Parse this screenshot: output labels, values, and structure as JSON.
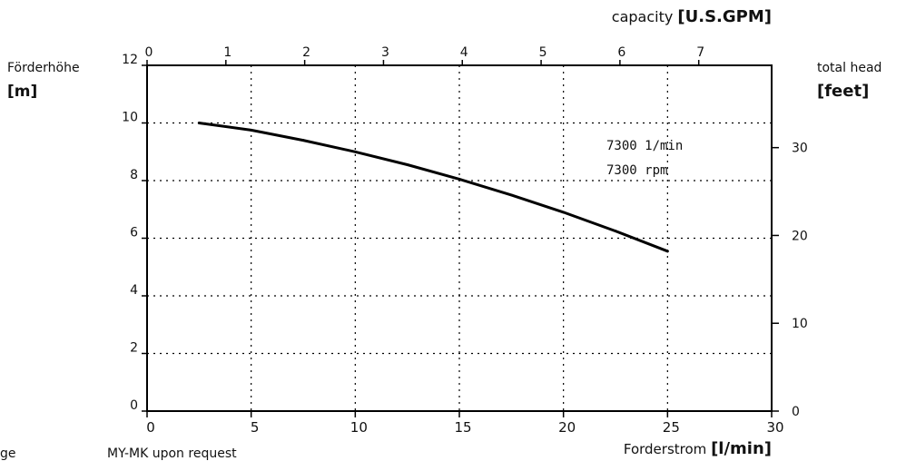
{
  "chart_data": {
    "type": "line",
    "x": [
      2.5,
      5,
      7.5,
      10,
      12.5,
      15,
      17.5,
      20,
      22.5,
      25
    ],
    "series": [
      {
        "values": [
          10.0,
          9.75,
          9.4,
          9.0,
          8.55,
          8.05,
          7.5,
          6.9,
          6.25,
          5.55
        ]
      }
    ],
    "xlabel": "Forderstrom",
    "xlabel_unit": "[l/min]",
    "xlim": [
      0,
      30
    ],
    "xticks": [
      "0",
      "5",
      "10",
      "15",
      "20",
      "25",
      "30"
    ],
    "ylabel": "Förderhöhe",
    "ylabel_unit": "[m]",
    "ylim": [
      0,
      12
    ],
    "yticks": [
      "0",
      "2",
      "4",
      "6",
      "8",
      "10",
      "12"
    ],
    "x2label": "capacity",
    "x2label_unit": "[U.S.GPM]",
    "x2lim": [
      0,
      7.925
    ],
    "x2ticks": [
      "0",
      "1",
      "2",
      "3",
      "4",
      "5",
      "6",
      "7"
    ],
    "y2label": "total head",
    "y2label_unit": "[feet]",
    "y2lim": [
      0,
      39.37
    ],
    "y2ticks": [
      "0",
      "10",
      "20",
      "30"
    ],
    "annotations": [
      "7300 1/min",
      "7300 rpm"
    ],
    "grid": true,
    "grid_style": "dotted",
    "colors": {
      "curve": "#000000",
      "grid": "#000000",
      "axis": "#000000"
    }
  },
  "footnote_left": "ge",
  "footnote": "MY-MK upon request"
}
